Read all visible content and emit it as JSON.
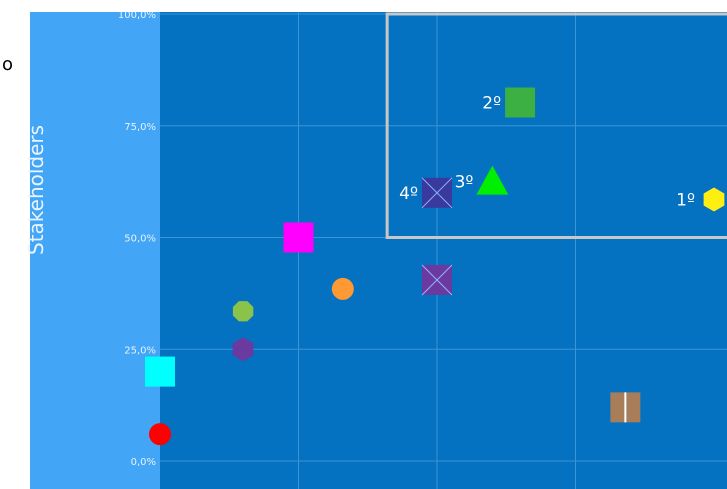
{
  "stray_text": "o",
  "chart_data": {
    "type": "scatter",
    "ylabel": "Stakeholders",
    "xlabel": "",
    "title": "",
    "ylim": [
      0,
      100
    ],
    "xlim": [
      0,
      100
    ],
    "y_ticks": [
      "100,0%",
      "75,0%",
      "50,0%",
      "25,0%",
      "0,0%"
    ],
    "y_tick_values": [
      100,
      75,
      50,
      25,
      0
    ],
    "x_grid": [
      25,
      50,
      75
    ],
    "grid": true,
    "highlight_region": {
      "x_from": 41,
      "x_to": 100,
      "y_from": 50,
      "y_to": 100
    },
    "colors": {
      "plot_bg": "#0471c1",
      "frame_bg": "#42a5f5",
      "grid": "#3a95d6",
      "highlight": "#c7c7c7",
      "label": "#ffffff"
    },
    "points": [
      {
        "x": 100,
        "y": 58.5,
        "shape": "hexagon",
        "color": "#ffee11",
        "label": "1º"
      },
      {
        "x": 65,
        "y": 80.2,
        "shape": "square",
        "color": "#3cb043",
        "label": "2º"
      },
      {
        "x": 60,
        "y": 62.5,
        "shape": "triangle",
        "color": "#00ee00",
        "label": "3º"
      },
      {
        "x": 50,
        "y": 60,
        "shape": "square-x",
        "color": "#3a3a9e",
        "label": "4º"
      },
      {
        "x": 25,
        "y": 50,
        "shape": "square",
        "color": "#ff00ff",
        "label": ""
      },
      {
        "x": 33,
        "y": 38.5,
        "shape": "circle",
        "color": "#ff9933",
        "label": ""
      },
      {
        "x": 50,
        "y": 40.5,
        "shape": "square-x",
        "color": "#6a3aa0",
        "label": ""
      },
      {
        "x": 15,
        "y": 33.5,
        "shape": "octagon",
        "color": "#8bc34a",
        "label": ""
      },
      {
        "x": 15,
        "y": 25,
        "shape": "hexagon",
        "color": "#6a3aa0",
        "label": ""
      },
      {
        "x": 0,
        "y": 20,
        "shape": "square",
        "color": "#00ffff",
        "label": ""
      },
      {
        "x": 0,
        "y": 6,
        "shape": "circle",
        "color": "#ff0000",
        "label": ""
      },
      {
        "x": 84,
        "y": 12,
        "shape": "square-bar",
        "color": "#a87d5a",
        "label": ""
      }
    ]
  }
}
